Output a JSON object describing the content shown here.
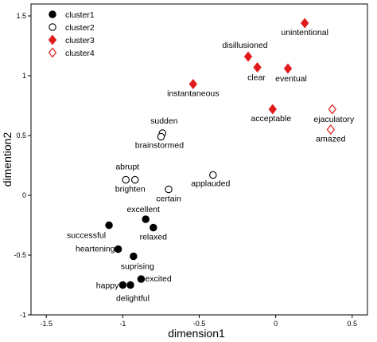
{
  "chart_data": {
    "type": "scatter",
    "xlabel": "dimension1",
    "ylabel": "dimention2",
    "xlim": [
      -1.6,
      0.6
    ],
    "ylim": [
      -1.0,
      1.6
    ],
    "xticks": [
      -1.5,
      -1,
      -0.5,
      0,
      0.5
    ],
    "xtick_labels": [
      "-1.5",
      "-1",
      "-0.5",
      "0",
      "0.5"
    ],
    "yticks": [
      -1,
      -0.5,
      0,
      0.5,
      1,
      1.5
    ],
    "ytick_labels": [
      "-1",
      "-0.5",
      "0",
      "0.5",
      "1",
      "1.5"
    ],
    "grid": false,
    "legend_position": "top-left",
    "series": [
      {
        "name": "cluster1",
        "marker": "circle",
        "filled": true,
        "color": "#000000",
        "points": [
          {
            "x": -1.09,
            "y": -0.25,
            "label": "successful",
            "anchor": "end",
            "dx": -4,
            "dy": 16
          },
          {
            "x": -0.85,
            "y": -0.2,
            "label": "excellent",
            "anchor": "middle",
            "dx": -3,
            "dy": -9
          },
          {
            "x": -0.8,
            "y": -0.27,
            "label": "relaxed",
            "anchor": "middle",
            "dx": 0,
            "dy": 15
          },
          {
            "x": -1.03,
            "y": -0.45,
            "label": "heartening",
            "anchor": "end",
            "dx": -4,
            "dy": 3
          },
          {
            "x": -0.93,
            "y": -0.51,
            "label": "suprising",
            "anchor": "middle",
            "dx": 5,
            "dy": 16
          },
          {
            "x": -0.88,
            "y": -0.7,
            "label": "excited",
            "anchor": "start",
            "dx": 5,
            "dy": 3
          },
          {
            "x": -1.0,
            "y": -0.75,
            "label": "happy",
            "anchor": "end",
            "dx": -5,
            "dy": 4
          },
          {
            "x": -0.95,
            "y": -0.75,
            "label": "delightful",
            "anchor": "middle",
            "dx": 3,
            "dy": 20
          }
        ]
      },
      {
        "name": "cluster2",
        "marker": "circle",
        "filled": false,
        "color": "#000000",
        "points": [
          {
            "x": -0.74,
            "y": 0.52,
            "label": "sudden",
            "anchor": "middle",
            "dx": 2,
            "dy": -12
          },
          {
            "x": -0.75,
            "y": 0.49,
            "label": "brainstormed",
            "anchor": "middle",
            "dx": -2,
            "dy": 14
          },
          {
            "x": -0.98,
            "y": 0.13,
            "label": "abrupt",
            "anchor": "middle",
            "dx": 2,
            "dy": -13
          },
          {
            "x": -0.92,
            "y": 0.13,
            "label": "brighten",
            "anchor": "middle",
            "dx": -6,
            "dy": 15
          },
          {
            "x": -0.7,
            "y": 0.05,
            "label": "certain",
            "anchor": "middle",
            "dx": 0,
            "dy": 15
          },
          {
            "x": -0.41,
            "y": 0.17,
            "label": "applauded",
            "anchor": "middle",
            "dx": -3,
            "dy": 14
          }
        ]
      },
      {
        "name": "cluster3",
        "marker": "diamond",
        "filled": true,
        "color": "#e11b1b",
        "points": [
          {
            "x": 0.19,
            "y": 1.44,
            "label": "unintentional",
            "anchor": "middle",
            "dx": 0,
            "dy": 15
          },
          {
            "x": -0.18,
            "y": 1.16,
            "label": "disillusioned",
            "anchor": "middle",
            "dx": -4,
            "dy": -11
          },
          {
            "x": -0.12,
            "y": 1.07,
            "label": "clear",
            "anchor": "middle",
            "dx": -1,
            "dy": 16
          },
          {
            "x": 0.08,
            "y": 1.06,
            "label": "eventual",
            "anchor": "middle",
            "dx": 4,
            "dy": 16
          },
          {
            "x": -0.54,
            "y": 0.93,
            "label": "instantaneous",
            "anchor": "middle",
            "dx": 0,
            "dy": 15
          },
          {
            "x": -0.02,
            "y": 0.72,
            "label": "acceptable",
            "anchor": "middle",
            "dx": -2,
            "dy": 15
          }
        ]
      },
      {
        "name": "cluster4",
        "marker": "diamond",
        "filled": false,
        "color": "#e11b1b",
        "points": [
          {
            "x": 0.37,
            "y": 0.72,
            "label": "ejaculatory",
            "anchor": "middle",
            "dx": 2,
            "dy": 16
          },
          {
            "x": 0.36,
            "y": 0.55,
            "label": "amazed",
            "anchor": "middle",
            "dx": 0,
            "dy": 15
          }
        ]
      }
    ]
  }
}
